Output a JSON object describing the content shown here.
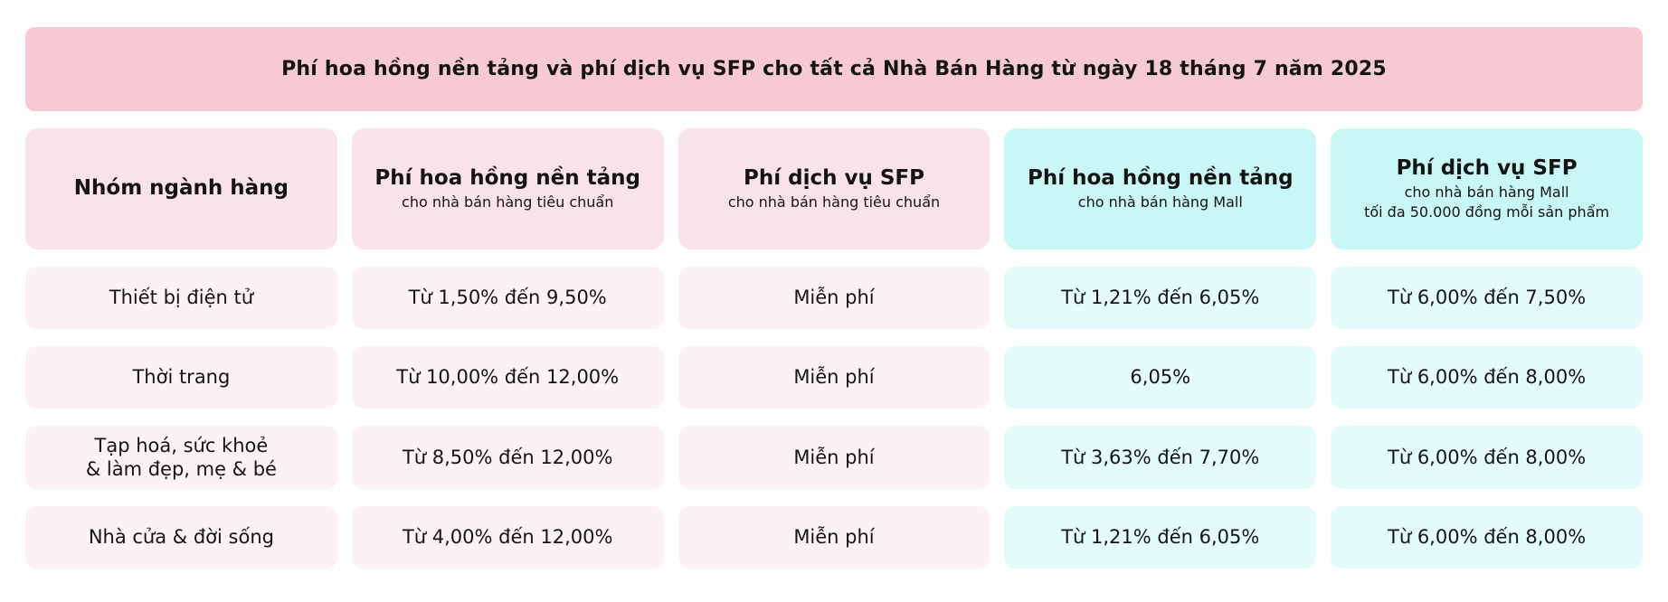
{
  "banner": {
    "title": "Phí hoa hồng nền tảng và phí dịch vụ SFP cho tất cả Nhà Bán Hàng từ ngày 18 tháng 7 năm 2025"
  },
  "colors": {
    "banner_bg": "#f7cad3",
    "header_pink_bg": "#fae3e8",
    "cell_pink_bg": "#fdf2f3",
    "header_cyan_bg": "#c9f7f5",
    "cell_cyan_bg": "#e3fcfa",
    "text": "#141414",
    "page_bg": "#ffffff"
  },
  "table": {
    "columns": [
      {
        "title": "Nhóm ngành hàng",
        "subtitle": "",
        "subtitle2": "",
        "theme": "pink"
      },
      {
        "title": "Phí hoa hồng nền tảng",
        "subtitle": "cho nhà bán hàng tiêu chuẩn",
        "subtitle2": "",
        "theme": "pink"
      },
      {
        "title": "Phí dịch vụ SFP",
        "subtitle": "cho nhà bán hàng tiêu chuẩn",
        "subtitle2": "",
        "theme": "pink"
      },
      {
        "title": "Phí hoa hồng nền tảng",
        "subtitle": "cho nhà bán hàng Mall",
        "subtitle2": "",
        "theme": "cyan"
      },
      {
        "title": "Phí dịch vụ SFP",
        "subtitle": "cho nhà bán hàng Mall",
        "subtitle2": "tối đa 50.000 đồng mỗi sản phẩm",
        "theme": "cyan"
      }
    ],
    "rows": [
      {
        "category": "Thiết bị điện tử",
        "cells": [
          "Từ 1,50% đến 9,50%",
          "Miễn phí",
          "Từ 1,21% đến 6,05%",
          "Từ 6,00% đến 7,50%"
        ]
      },
      {
        "category": "Thời trang",
        "cells": [
          "Từ 10,00% đến 12,00%",
          "Miễn phí",
          "6,05%",
          "Từ 6,00% đến 8,00%"
        ]
      },
      {
        "category": "Tạp hoá, sức khoẻ\n& làm đẹp, mẹ & bé",
        "cells": [
          "Từ 8,50% đến 12,00%",
          "Miễn phí",
          "Từ 3,63% đến 7,70%",
          "Từ 6,00% đến 8,00%"
        ]
      },
      {
        "category": "Nhà cửa & đời sống",
        "cells": [
          "Từ 4,00% đến 12,00%",
          "Miễn phí",
          "Từ 1,21% đến 6,05%",
          "Từ 6,00% đến 8,00%"
        ]
      }
    ]
  },
  "chart_data": {
    "type": "table",
    "title": "Phí hoa hồng nền tảng và phí dịch vụ SFP cho tất cả Nhà Bán Hàng từ ngày 18 tháng 7 năm 2025",
    "columns": [
      "Nhóm ngành hàng",
      "Phí hoa hồng nền tảng (cho nhà bán hàng tiêu chuẩn)",
      "Phí dịch vụ SFP (cho nhà bán hàng tiêu chuẩn)",
      "Phí hoa hồng nền tảng (cho nhà bán hàng Mall)",
      "Phí dịch vụ SFP (cho nhà bán hàng Mall, tối đa 50.000 đồng mỗi sản phẩm)"
    ],
    "rows": [
      [
        "Thiết bị điện tử",
        "Từ 1,50% đến 9,50%",
        "Miễn phí",
        "Từ 1,21% đến 6,05%",
        "Từ 6,00% đến 7,50%"
      ],
      [
        "Thời trang",
        "Từ 10,00% đến 12,00%",
        "Miễn phí",
        "6,05%",
        "Từ 6,00% đến 8,00%"
      ],
      [
        "Tạp hoá, sức khoẻ & làm đẹp, mẹ & bé",
        "Từ 8,50% đến 12,00%",
        "Miễn phí",
        "Từ 3,63% đến 7,70%",
        "Từ 6,00% đến 8,00%"
      ],
      [
        "Nhà cửa & đời sống",
        "Từ 4,00% đến 12,00%",
        "Miễn phí",
        "Từ 1,21% đến 6,05%",
        "Từ 6,00% đến 8,00%"
      ]
    ],
    "layout": {
      "legend": "none",
      "grid": false,
      "column_themes": [
        "pink",
        "pink",
        "pink",
        "cyan",
        "cyan"
      ]
    }
  }
}
